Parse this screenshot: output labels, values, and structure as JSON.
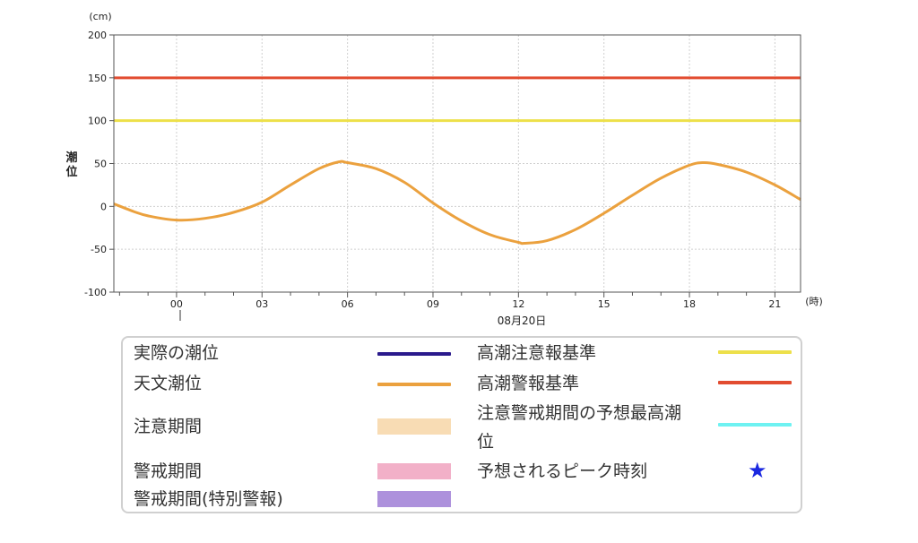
{
  "chart_data": {
    "type": "line",
    "y_unit": "(cm)",
    "x_unit": "(時)",
    "ylabel": "潮位",
    "date_label": "08月20日",
    "ylim": [
      -100,
      200
    ],
    "xlim_hours": [
      -2.2,
      21.9
    ],
    "y_ticks": [
      200,
      150,
      100,
      50,
      0,
      -50,
      -100
    ],
    "y_tick_labels": [
      "200",
      "150",
      "100",
      "50",
      "0",
      "-50",
      "-100"
    ],
    "x_ticks": [
      0,
      3,
      6,
      9,
      12,
      15,
      18,
      21
    ],
    "x_tick_labels": [
      "00",
      "03",
      "06",
      "09",
      "12",
      "15",
      "18",
      "21"
    ],
    "grid": true,
    "series": [
      {
        "name": "天文潮位",
        "x_hours": [
          -2.2,
          -1.5,
          -1,
          0,
          1,
          2,
          3,
          4,
          5,
          5.7,
          6,
          7,
          8,
          9,
          10,
          11,
          12,
          12.2,
          13,
          14,
          15,
          16,
          17,
          18,
          18.5,
          19,
          20,
          21,
          21.9
        ],
        "values": [
          3,
          -6,
          -11,
          -16,
          -14,
          -7,
          5,
          25,
          44,
          52,
          51,
          44,
          28,
          4,
          -17,
          -33,
          -42,
          -43,
          -40,
          -27,
          -8,
          13,
          33,
          48,
          51,
          49,
          40,
          25,
          8
        ]
      }
    ],
    "thresholds": [
      {
        "name": "高潮警報基準",
        "value": 150
      },
      {
        "name": "高潮注意報基準",
        "value": 100
      }
    ]
  },
  "colors": {
    "actual": "#2a1a8c",
    "astronomical": "#eba13e",
    "advisory": "#ede04a",
    "warning": "#e24c30",
    "forecast_peak": "#6ef2f2",
    "caution_period": "#f8dcb4",
    "warning_period": "#f2b0c8",
    "special_period": "#ad91dc",
    "star": "#1a28e0"
  },
  "legend": {
    "actual": "実際の潮位",
    "astronomical": "天文潮位",
    "caution_period": "注意期間",
    "warning_period": "警戒期間",
    "special_period": "警戒期間(特別警報)",
    "advisory": "高潮注意報基準",
    "warning": "高潮警報基準",
    "forecast_peak_line1": "注意警戒期間の予想最高潮",
    "forecast_peak_line2": "位",
    "peak_time": "予想されるピーク時刻",
    "star_icon": "★"
  }
}
